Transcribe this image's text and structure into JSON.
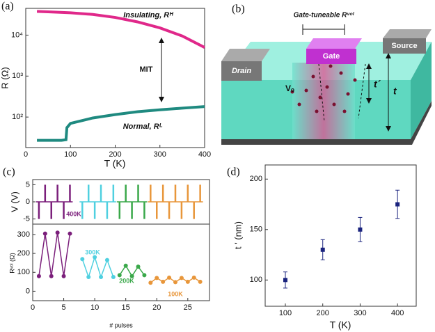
{
  "panel_labels": [
    "(a)",
    "(b)",
    "(c)",
    "(d)"
  ],
  "diagram": {
    "title": "Gate-tuneable Rᵛᵒˡ",
    "gate": "Gate",
    "drain": "Drain",
    "source": "Source",
    "t_prime": "t´",
    "t": "t",
    "vo": "Vₒ"
  },
  "chart_data": [
    {
      "type": "line",
      "log_y": true,
      "xlabel": "T (K)",
      "ylabel": "R (Ω)",
      "annotations": [
        "MIT"
      ],
      "xlim": [
        0,
        400
      ],
      "xticks": [
        0,
        100,
        200,
        300,
        400
      ],
      "ylim": [
        18,
        45000
      ],
      "yticks": [
        {
          "value": 100,
          "label": "10²"
        },
        {
          "value": 1000,
          "label": "10³"
        },
        {
          "value": 10000,
          "label": "10⁴"
        }
      ],
      "series": [
        {
          "name": "Insulating, Rᴴ",
          "color": "#e0288a",
          "x": [
            25,
            50,
            100,
            150,
            200,
            250,
            300,
            350,
            400
          ],
          "values": [
            38000,
            37000,
            35000,
            32000,
            27000,
            21000,
            15000,
            9500,
            5000
          ]
        },
        {
          "name": "Normal, Rᴸ",
          "color": "#1f8a80",
          "x": [
            25,
            50,
            80,
            90,
            92,
            100,
            150,
            200,
            250,
            300,
            350,
            400
          ],
          "values": [
            27,
            27,
            27,
            28,
            55,
            70,
            95,
            115,
            135,
            150,
            165,
            180
          ]
        }
      ]
    },
    {
      "type": "bar",
      "ylabel": "V (V)",
      "xlim": [
        0,
        28.5
      ],
      "ylim": [
        -6.5,
        6.5
      ],
      "yticks": [
        -5,
        0,
        5
      ],
      "series": [
        {
          "color": "#7b1f7b",
          "x": [
            1,
            2,
            3,
            4,
            5,
            6
          ],
          "values": [
            -5,
            5,
            -5,
            5,
            -5,
            5
          ]
        },
        {
          "color": "#4fd0e0",
          "x": [
            8,
            9,
            10,
            11,
            12,
            13
          ],
          "values": [
            -5,
            5,
            -5,
            5,
            -5,
            5
          ]
        },
        {
          "color": "#3aa84a",
          "x": [
            14,
            15,
            16,
            17,
            18
          ],
          "values": [
            -5,
            5,
            -5,
            5,
            -5
          ]
        },
        {
          "color": "#e8963a",
          "x": [
            19,
            20,
            21,
            22,
            23,
            24,
            25,
            26,
            27
          ],
          "values": [
            5,
            -5,
            5,
            -5,
            5,
            -5,
            5,
            -5,
            5
          ]
        }
      ]
    },
    {
      "type": "line",
      "markers": true,
      "xlabel": "# pulses",
      "ylabel": "Rᵛᵒˡ (Ω)",
      "xlim": [
        0,
        28.5
      ],
      "xticks": [
        0,
        5,
        10,
        15,
        20,
        25
      ],
      "ylim": [
        -50,
        355
      ],
      "yticks": [
        0,
        100,
        200,
        300
      ],
      "series": [
        {
          "name": "400K",
          "color": "#7b1f7b",
          "x": [
            1,
            2,
            3,
            4,
            5,
            6
          ],
          "values": [
            80,
            305,
            80,
            310,
            80,
            305
          ]
        },
        {
          "name": "300K",
          "color": "#4fd0e0",
          "x": [
            8,
            9,
            10,
            11,
            12,
            13
          ],
          "values": [
            170,
            75,
            180,
            75,
            165,
            75
          ]
        },
        {
          "name": "200K",
          "color": "#3aa84a",
          "x": [
            14,
            15,
            16,
            17,
            18
          ],
          "values": [
            85,
            135,
            80,
            130,
            85
          ]
        },
        {
          "name": "100K",
          "color": "#e8963a",
          "x": [
            19,
            20,
            21,
            22,
            23,
            24,
            25,
            26,
            27
          ],
          "values": [
            45,
            70,
            50,
            72,
            48,
            70,
            50,
            72,
            50
          ]
        }
      ]
    },
    {
      "type": "scatter",
      "xlabel": "T (K)",
      "ylabel": "t ' (nm)",
      "color": "#1a237e",
      "xlim": [
        46,
        450
      ],
      "xticks": [
        100,
        200,
        300,
        400
      ],
      "ylim": [
        74,
        214
      ],
      "yticks": [
        100,
        150,
        200
      ],
      "x": [
        100,
        200,
        300,
        400
      ],
      "values": [
        100,
        130,
        150,
        175
      ],
      "errors": [
        8,
        10,
        12,
        14
      ]
    }
  ]
}
